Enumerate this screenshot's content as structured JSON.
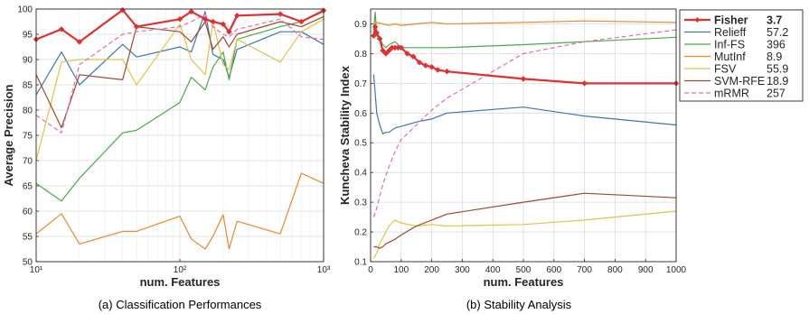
{
  "chart_data": [
    {
      "type": "line",
      "caption": "(a) Classification Performances",
      "xlabel": "num. Features",
      "ylabel": "Average Precision",
      "xscale": "log",
      "xlim": [
        10,
        1000
      ],
      "ylim": [
        50,
        100
      ],
      "xticks": [
        10,
        100,
        1000
      ],
      "xtick_labels": [
        "10¹",
        "10²",
        "10³"
      ],
      "yticks": [
        50,
        55,
        60,
        65,
        70,
        75,
        80,
        85,
        90,
        95,
        100
      ],
      "grid": true,
      "series": [
        {
          "name": "Fisher",
          "color": "#e03030",
          "width": 2.2,
          "marker": "diamond",
          "x": [
            10,
            15,
            20,
            40,
            50,
            100,
            120,
            150,
            170,
            200,
            220,
            250,
            500,
            700,
            1000
          ],
          "y": [
            94,
            96,
            93.5,
            99.8,
            96.5,
            98,
            99.5,
            98,
            97.5,
            97,
            95.5,
            98.7,
            99,
            97.5,
            99.7
          ]
        },
        {
          "name": "Relieff",
          "color": "#3a78b5",
          "width": 1.2,
          "x": [
            10,
            15,
            20,
            40,
            50,
            100,
            120,
            150,
            170,
            200,
            220,
            250,
            500,
            700,
            1000
          ],
          "y": [
            83,
            91.5,
            85,
            93,
            90.5,
            92.5,
            91.5,
            99.5,
            91,
            90,
            86.5,
            92,
            95.5,
            95.5,
            93
          ]
        },
        {
          "name": "Inf-FS",
          "color": "#4aaa48",
          "width": 1.2,
          "x": [
            10,
            15,
            20,
            40,
            50,
            100,
            120,
            150,
            170,
            200,
            220,
            250,
            500,
            700,
            1000
          ],
          "y": [
            65.5,
            62,
            66.5,
            75.5,
            76,
            81.5,
            86.5,
            84,
            88.5,
            91.5,
            86,
            94,
            96.5,
            97.5,
            99.5
          ]
        },
        {
          "name": "MutInf",
          "color": "#e8892a",
          "width": 1.2,
          "x": [
            10,
            15,
            20,
            40,
            50,
            100,
            120,
            150,
            170,
            200,
            220,
            250,
            500,
            700,
            1000
          ],
          "y": [
            55.5,
            59.5,
            53.5,
            56,
            56,
            59,
            54.5,
            52.5,
            55,
            59.3,
            52.5,
            58,
            55.5,
            67.5,
            65.5
          ]
        },
        {
          "name": "FSV",
          "color": "#e2c443",
          "width": 1.2,
          "x": [
            10,
            15,
            20,
            40,
            50,
            100,
            120,
            150,
            170,
            200,
            220,
            250,
            500,
            700,
            1000
          ],
          "y": [
            70,
            89.5,
            90,
            90,
            85,
            97,
            90,
            87,
            97.5,
            89,
            88,
            94,
            89.5,
            95.5,
            98
          ]
        },
        {
          "name": "SVM-RFE",
          "color": "#9b4b2d",
          "width": 1.2,
          "x": [
            10,
            15,
            20,
            40,
            50,
            100,
            120,
            150,
            170,
            200,
            220,
            250,
            500,
            700,
            1000
          ],
          "y": [
            87,
            76.5,
            87,
            86,
            96.5,
            95.5,
            93.5,
            97.5,
            92,
            94.5,
            92.5,
            95,
            97.5,
            96.5,
            98.5
          ]
        },
        {
          "name": "mRMR",
          "color": "#e56fa8",
          "width": 1.2,
          "dash": true,
          "x": [
            10,
            15,
            20,
            40,
            50,
            100,
            120,
            150,
            170,
            200,
            220,
            250,
            500,
            700,
            1000
          ],
          "y": [
            79,
            75.5,
            89,
            95,
            95.5,
            96.5,
            97.5,
            99,
            96.5,
            95,
            94.5,
            96,
            98,
            94.5,
            94
          ]
        }
      ]
    },
    {
      "type": "line",
      "caption": "(b) Stability Analysis",
      "xlabel": "num. Features",
      "ylabel": "Kuncheva Stability Index",
      "xlim": [
        0,
        1000
      ],
      "ylim": [
        0.1,
        0.95
      ],
      "xticks": [
        0,
        100,
        200,
        300,
        400,
        500,
        600,
        700,
        800,
        900,
        1000
      ],
      "yticks": [
        0.1,
        0.2,
        0.3,
        0.4,
        0.5,
        0.6,
        0.7,
        0.8,
        0.9
      ],
      "ytick_labels": [
        "0.1",
        "0.2",
        "0.3",
        "0.4",
        "0.5",
        "0.6",
        "0.7",
        "0.8",
        "0.9"
      ],
      "grid": true,
      "series": [
        {
          "name": "Fisher",
          "value": "3.7",
          "color": "#e03030",
          "width": 2.2,
          "marker": "diamond",
          "x": [
            10,
            15,
            20,
            30,
            40,
            50,
            60,
            70,
            80,
            90,
            100,
            120,
            140,
            160,
            180,
            200,
            220,
            250,
            500,
            700,
            1000
          ],
          "y": [
            0.86,
            0.89,
            0.87,
            0.85,
            0.81,
            0.8,
            0.81,
            0.82,
            0.82,
            0.82,
            0.82,
            0.8,
            0.79,
            0.77,
            0.76,
            0.755,
            0.745,
            0.74,
            0.715,
            0.7,
            0.7
          ]
        },
        {
          "name": "Relieff",
          "value": "57.2",
          "color": "#3a78b5",
          "width": 1.2,
          "x": [
            10,
            20,
            30,
            40,
            50,
            60,
            80,
            100,
            150,
            200,
            250,
            500,
            700,
            1000
          ],
          "y": [
            0.73,
            0.6,
            0.56,
            0.53,
            0.535,
            0.535,
            0.55,
            0.555,
            0.57,
            0.58,
            0.6,
            0.62,
            0.59,
            0.56
          ]
        },
        {
          "name": "Inf-FS",
          "value": "396",
          "color": "#4aaa48",
          "width": 1.2,
          "x": [
            10,
            15,
            20,
            30,
            40,
            50,
            60,
            80,
            100,
            150,
            200,
            250,
            500,
            700,
            1000
          ],
          "y": [
            0.88,
            0.94,
            0.86,
            0.85,
            0.83,
            0.82,
            0.83,
            0.84,
            0.82,
            0.82,
            0.82,
            0.82,
            0.83,
            0.84,
            0.855
          ]
        },
        {
          "name": "MutInf",
          "value": "8.9",
          "color": "#e8892a",
          "width": 1.2,
          "x": [
            10,
            20,
            40,
            60,
            80,
            100,
            150,
            200,
            250,
            500,
            700,
            1000
          ],
          "y": [
            0.9,
            0.905,
            0.9,
            0.895,
            0.9,
            0.895,
            0.9,
            0.905,
            0.9,
            0.905,
            0.91,
            0.905
          ]
        },
        {
          "name": "FSV",
          "value": "55.9",
          "color": "#e2c443",
          "width": 1.2,
          "x": [
            10,
            20,
            30,
            40,
            50,
            60,
            80,
            100,
            150,
            200,
            250,
            500,
            700,
            1000
          ],
          "y": [
            0.11,
            0.13,
            0.16,
            0.18,
            0.2,
            0.22,
            0.24,
            0.23,
            0.22,
            0.225,
            0.22,
            0.225,
            0.24,
            0.27
          ]
        },
        {
          "name": "SVM-RFE",
          "value": "18.9",
          "color": "#9b4b2d",
          "width": 1.2,
          "x": [
            10,
            20,
            30,
            40,
            50,
            60,
            80,
            100,
            150,
            200,
            250,
            500,
            700,
            1000
          ],
          "y": [
            0.15,
            0.15,
            0.145,
            0.15,
            0.16,
            0.165,
            0.175,
            0.19,
            0.22,
            0.24,
            0.26,
            0.3,
            0.33,
            0.315
          ]
        },
        {
          "name": "mRMR",
          "value": "257",
          "color": "#e56fa8",
          "width": 1.2,
          "dash": true,
          "x": [
            10,
            20,
            30,
            40,
            50,
            60,
            80,
            100,
            150,
            200,
            250,
            500,
            700,
            1000
          ],
          "y": [
            0.25,
            0.28,
            0.32,
            0.36,
            0.39,
            0.42,
            0.47,
            0.51,
            0.56,
            0.61,
            0.65,
            0.8,
            0.84,
            0.88
          ]
        }
      ]
    }
  ]
}
